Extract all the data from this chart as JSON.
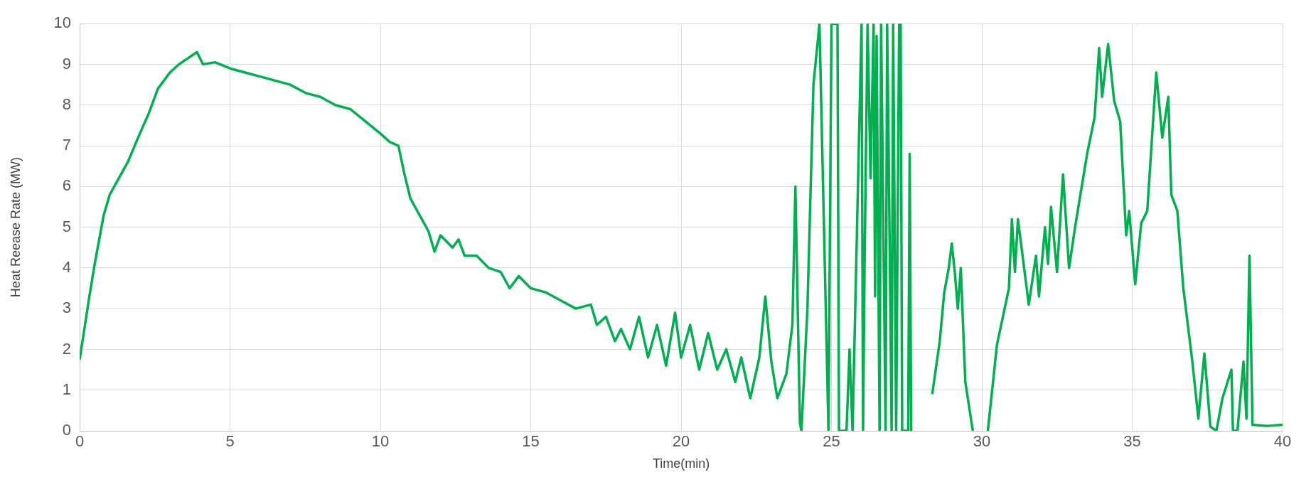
{
  "chart_data": {
    "type": "line",
    "xlabel": "Time(min)",
    "ylabel": "Heat Reease Rate (MW)",
    "xlim": [
      0,
      40
    ],
    "xticks": [
      0,
      5,
      10,
      15,
      20,
      25,
      30,
      35,
      40
    ],
    "ylim": [
      0,
      10
    ],
    "yticks": [
      0,
      1,
      2,
      3,
      4,
      5,
      6,
      7,
      8,
      9,
      10
    ],
    "grid": true,
    "legend": false,
    "marker": "none",
    "line_style": "solid",
    "series": [
      {
        "color": "#00b050",
        "x": [
          0,
          0.3,
          0.5,
          0.8,
          1,
          1.3,
          1.6,
          2,
          2.3,
          2.6,
          3,
          3.3,
          3.6,
          3.9,
          4.1,
          4.5,
          5,
          5.5,
          6,
          6.5,
          7,
          7.5,
          8,
          8.5,
          9,
          9.5,
          10,
          10.3,
          10.6,
          10.8,
          11,
          11.3,
          11.6,
          11.8,
          12,
          12.4,
          12.6,
          12.8,
          13.2,
          13.6,
          14,
          14.3,
          14.6,
          15,
          15.5,
          16,
          16.5,
          17,
          17.2,
          17.5,
          17.8,
          18,
          18.3,
          18.6,
          18.9,
          19.2,
          19.5,
          19.8,
          20,
          20.3,
          20.6,
          20.9,
          21.2,
          21.5,
          21.8,
          22,
          22.3,
          22.6,
          22.8,
          23,
          23.2,
          23.5,
          23.7,
          23.8,
          23.95,
          24,
          24.2,
          24.4,
          24.6,
          24.9,
          25,
          25.2,
          25.25,
          25.5,
          25.6,
          25.7,
          26,
          26.05,
          26.1,
          26.2,
          26.3,
          26.4,
          26.45,
          26.5,
          26.6,
          26.65,
          26.8,
          26.85,
          26.9,
          27,
          27.05,
          27.15,
          27.25,
          27.3,
          27.35,
          27.55,
          27.6,
          27.65,
          28,
          28.35,
          28.6,
          28.75,
          28.9,
          29,
          29.1,
          29.2,
          29.3,
          29.45,
          29.7,
          29.9,
          30.2,
          30.5,
          30.9,
          31,
          31.1,
          31.2,
          31.56,
          31.8,
          31.9,
          32.1,
          32.2,
          32.3,
          32.5,
          32.7,
          32.9,
          33.1,
          33.5,
          33.75,
          33.9,
          34,
          34.2,
          34.4,
          34.6,
          34.8,
          34.9,
          35.1,
          35.3,
          35.5,
          35.8,
          36,
          36.2,
          36.3,
          36.5,
          36.7,
          36.9,
          37,
          37.2,
          37.4,
          37.6,
          37.8,
          38,
          38.3,
          38.35,
          38.5,
          38.7,
          38.8,
          38.9,
          39,
          39.5,
          40
        ],
        "values": [
          1.75,
          3.2,
          4.1,
          5.3,
          5.8,
          6.2,
          6.6,
          7.3,
          7.8,
          8.4,
          8.8,
          9,
          9.15,
          9.3,
          9,
          9.05,
          8.9,
          8.8,
          8.7,
          8.6,
          8.5,
          8.3,
          8.2,
          8,
          7.9,
          7.6,
          7.3,
          7.1,
          7,
          6.3,
          5.7,
          5.3,
          4.9,
          4.4,
          4.8,
          4.5,
          4.7,
          4.3,
          4.3,
          4,
          3.9,
          3.5,
          3.8,
          3.5,
          3.4,
          3.2,
          3,
          3.1,
          2.6,
          2.8,
          2.2,
          2.5,
          2,
          2.8,
          1.8,
          2.6,
          1.6,
          2.9,
          1.8,
          2.6,
          1.5,
          2.4,
          1.5,
          2,
          1.2,
          1.8,
          0.8,
          1.8,
          3.3,
          1.7,
          0.8,
          1.4,
          2.6,
          6,
          0.2,
          0,
          3,
          8.5,
          10,
          0,
          10,
          10,
          0,
          0,
          2,
          0,
          10,
          0,
          4.1,
          10,
          6.2,
          10,
          3.3,
          9.7,
          0,
          10,
          0,
          10,
          7,
          0,
          10,
          0,
          10,
          10,
          0,
          0,
          6.8,
          0,
          null,
          0.9,
          2.2,
          3.4,
          4,
          4.6,
          3.9,
          3,
          4,
          1.2,
          0,
          null,
          0,
          2.1,
          3.5,
          5.2,
          3.9,
          5.2,
          3.1,
          4.3,
          3.3,
          5,
          4.1,
          5.5,
          3.9,
          6.3,
          4,
          5,
          6.8,
          7.7,
          9.4,
          8.2,
          9.5,
          8.1,
          7.6,
          4.8,
          5.4,
          3.6,
          5.1,
          5.4,
          8.8,
          7.2,
          8.2,
          5.8,
          5.4,
          3.5,
          2.3,
          1.7,
          0.3,
          1.9,
          0.1,
          0,
          0.8,
          1.5,
          0,
          0,
          1.7,
          0.3,
          4.3,
          0.15,
          0.12,
          0.15
        ]
      }
    ]
  }
}
